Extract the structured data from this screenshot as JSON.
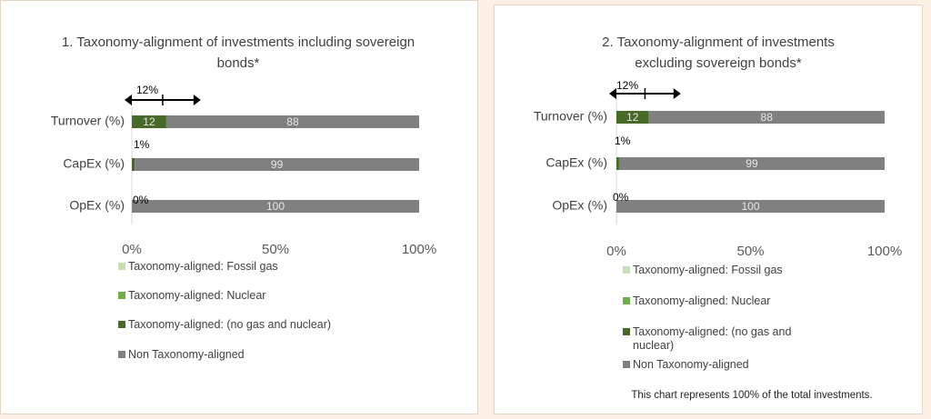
{
  "chart_data": [
    {
      "type": "stacked-bar-horizontal",
      "title": "1. Taxonomy-alignment of investments including sovereign bonds*",
      "categories": [
        "Turnover (%)",
        "CapEx (%)",
        "OpEx (%)"
      ],
      "series": [
        {
          "name": "Taxonomy-aligned: Fossil gas",
          "color": "#c5e0b4",
          "values": [
            0,
            0,
            0
          ]
        },
        {
          "name": "Taxonomy-aligned: Nuclear",
          "color": "#70ad47",
          "values": [
            0,
            0,
            0
          ]
        },
        {
          "name": "Taxonomy-aligned: (no gas and nuclear)",
          "color": "#486a28",
          "values": [
            12,
            1,
            0
          ]
        },
        {
          "name": "Non Taxonomy-aligned",
          "color": "#808080",
          "values": [
            88,
            99,
            100
          ]
        }
      ],
      "annotations": [
        "12%",
        "1%",
        "0%"
      ],
      "xlim": [
        0,
        100
      ],
      "xticks": [
        {
          "value": 0,
          "label": "0%"
        },
        {
          "value": 50,
          "label": "50%"
        },
        {
          "value": 100,
          "label": "100%"
        }
      ]
    },
    {
      "type": "stacked-bar-horizontal",
      "title": "2. Taxonomy-alignment of investments excluding sovereign bonds*",
      "categories": [
        "Turnover (%)",
        "CapEx (%)",
        "OpEx (%)"
      ],
      "series": [
        {
          "name": "Taxonomy-aligned: Fossil gas",
          "color": "#c5e0b4",
          "values": [
            0,
            0,
            0
          ]
        },
        {
          "name": "Taxonomy-aligned: Nuclear",
          "color": "#70ad47",
          "values": [
            0,
            0,
            0
          ]
        },
        {
          "name": "Taxonomy-aligned: (no gas and nuclear)",
          "color": "#486a28",
          "values": [
            12,
            1,
            0
          ]
        },
        {
          "name": "Non Taxonomy-aligned",
          "color": "#808080",
          "values": [
            88,
            99,
            100
          ]
        }
      ],
      "annotations": [
        "12%",
        "1%",
        "0%"
      ],
      "xlim": [
        0,
        100
      ],
      "xticks": [
        {
          "value": 0,
          "label": "0%"
        },
        {
          "value": 50,
          "label": "50%"
        },
        {
          "value": 100,
          "label": "100%"
        }
      ],
      "note": "This chart represents 100% of the total investments."
    }
  ]
}
